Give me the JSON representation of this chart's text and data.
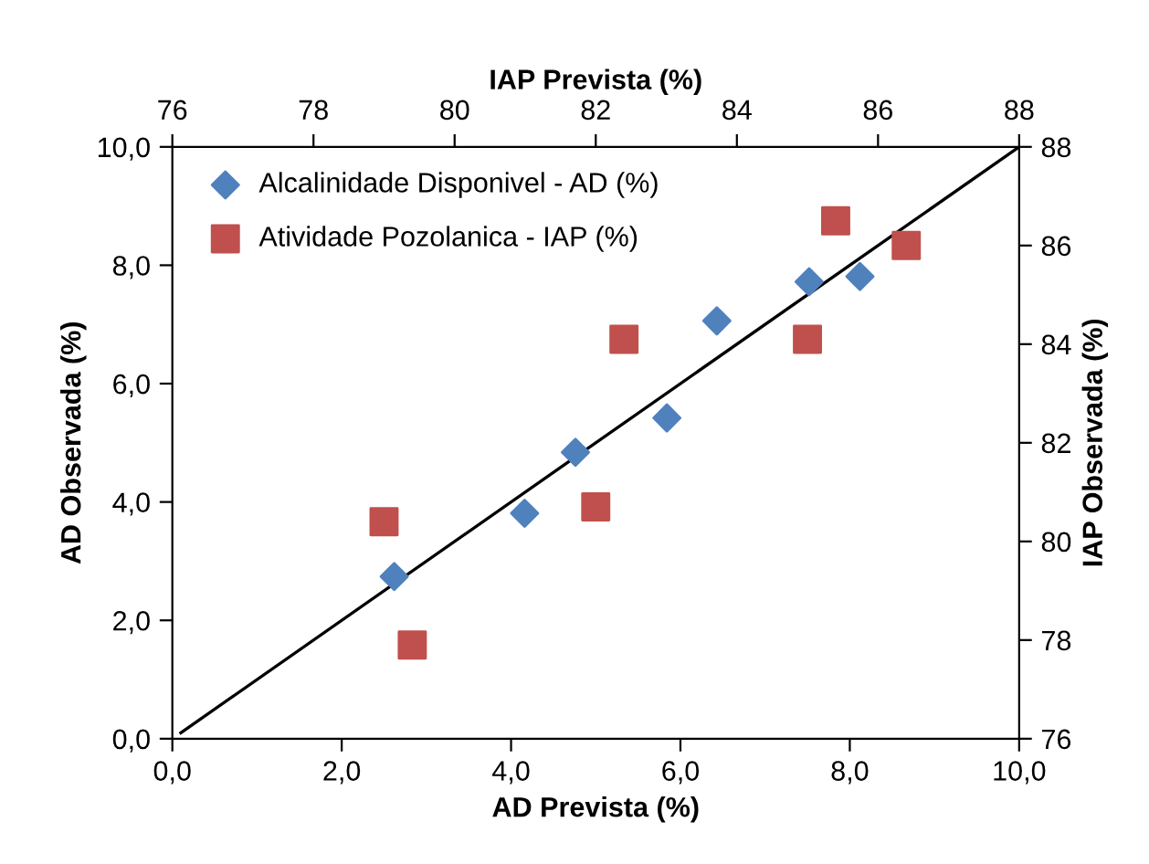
{
  "chart_data": [
    {
      "type": "scatter",
      "xlabel": "AD Prevista (%)",
      "ylabel": "AD Observada (%)",
      "xlim": [
        0,
        10
      ],
      "ylim": [
        0,
        10
      ],
      "xticks": [
        {
          "value": 0,
          "label": "0,0"
        },
        {
          "value": 2,
          "label": "2,0"
        },
        {
          "value": 4,
          "label": "4,0"
        },
        {
          "value": 6,
          "label": "6,0"
        },
        {
          "value": 8,
          "label": "8,0"
        },
        {
          "value": 10,
          "label": "10,0"
        }
      ],
      "yticks": [
        {
          "value": 0,
          "label": "0,0"
        },
        {
          "value": 2,
          "label": "2,0"
        },
        {
          "value": 4,
          "label": "4,0"
        },
        {
          "value": 6,
          "label": "6,0"
        },
        {
          "value": 8,
          "label": "8,0"
        },
        {
          "value": 10,
          "label": "10,0"
        }
      ],
      "grid": false,
      "legend": "top left",
      "series": [
        {
          "name": "Alcalinidade Disponivel - AD (%)",
          "color": "#4f81bd",
          "marker": "diamond",
          "x": [
            2.62,
            4.16,
            4.76,
            5.84,
            6.43,
            7.52,
            8.12
          ],
          "values": [
            2.74,
            3.81,
            4.84,
            5.42,
            7.06,
            7.72,
            7.81
          ]
        },
        {
          "type": "line",
          "color": "#000000",
          "marker": "none",
          "line_style": "solid",
          "x": [
            0.1,
            10
          ],
          "values": [
            0.1,
            10
          ]
        }
      ]
    },
    {
      "type": "scatter",
      "xlabel": "IAP Prevista (%)",
      "ylabel": "IAP Observada (%)",
      "xlim": [
        76,
        88
      ],
      "ylim": [
        76,
        88
      ],
      "xticks": [
        76,
        78,
        80,
        82,
        84,
        86,
        88
      ],
      "yticks": [
        76,
        78,
        80,
        82,
        84,
        86,
        88
      ],
      "grid": false,
      "legend": "top left",
      "series": [
        {
          "name": "Atividade Pozolanica - IAP (%)",
          "color": "#c0504d",
          "marker": "square",
          "x": [
            79.0,
            79.4,
            82.0,
            82.4,
            85.0,
            85.4,
            86.4
          ],
          "values": [
            80.4,
            77.9,
            80.7,
            84.1,
            84.1,
            86.5,
            86.0
          ]
        }
      ]
    }
  ]
}
